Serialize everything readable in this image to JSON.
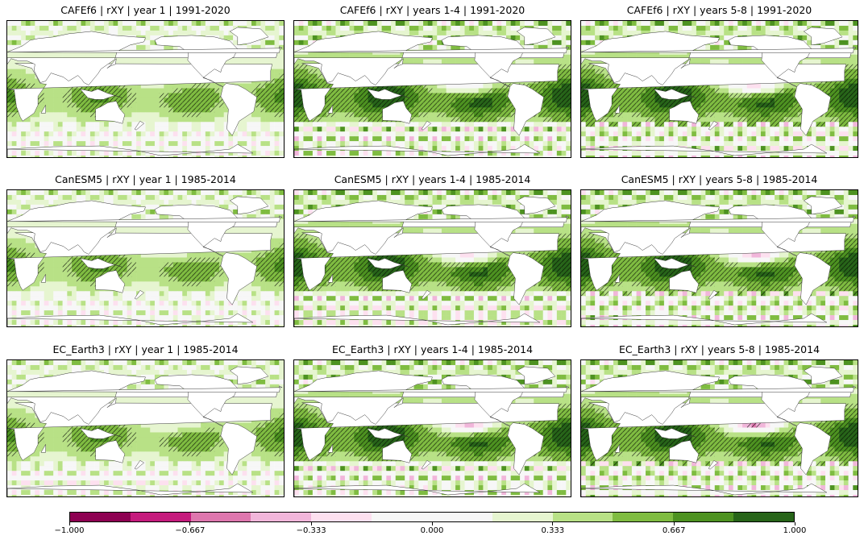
{
  "chart_data": {
    "type": "heatmap",
    "panels": [
      {
        "title": "CAFEf6 | rXY | year 1 | 1991-2020",
        "model": "CAFEf6",
        "lead": "year 1",
        "period": "1991-2020"
      },
      {
        "title": "CAFEf6 | rXY | years 1-4 | 1991-2020",
        "model": "CAFEf6",
        "lead": "years 1-4",
        "period": "1991-2020"
      },
      {
        "title": "CAFEf6 | rXY | years 5-8 | 1991-2020",
        "model": "CAFEf6",
        "lead": "years 5-8",
        "period": "1991-2020"
      },
      {
        "title": "CanESM5 | rXY | year 1 | 1985-2014",
        "model": "CanESM5",
        "lead": "year 1",
        "period": "1985-2014"
      },
      {
        "title": "CanESM5 | rXY | years 1-4 | 1985-2014",
        "model": "CanESM5",
        "lead": "years 1-4",
        "period": "1985-2014"
      },
      {
        "title": "CanESM5 | rXY | years 5-8 | 1985-2014",
        "model": "CanESM5",
        "lead": "years 5-8",
        "period": "1985-2014"
      },
      {
        "title": "EC_Earth3 | rXY | year 1 | 1985-2014",
        "model": "EC_Earth3",
        "lead": "year 1",
        "period": "1985-2014"
      },
      {
        "title": "EC_Earth3 | rXY | years 1-4 | 1985-2014",
        "model": "EC_Earth3",
        "lead": "years 1-4",
        "period": "1985-2014"
      },
      {
        "title": "EC_Earth3 | rXY | years 5-8 | 1985-2014",
        "model": "EC_Earth3",
        "lead": "years 5-8",
        "period": "1985-2014"
      }
    ],
    "colorbar": {
      "range": [
        -1,
        1
      ],
      "ticks": [
        "-1.000",
        "-0.667",
        "-0.333",
        "0.000",
        "0.333",
        "0.667",
        "1.000"
      ],
      "tick_values": [
        -1,
        -0.667,
        -0.333,
        0,
        0.333,
        0.667,
        1
      ],
      "colormap": "PiYG",
      "levels": 12,
      "colors": [
        "#8e0152",
        "#c51b7d",
        "#de77ae",
        "#f1b6da",
        "#fde0ef",
        "#f7f7f7",
        "#f7f7f7",
        "#e6f5d0",
        "#b8e186",
        "#7fbc41",
        "#4d9221",
        "#276419"
      ]
    },
    "land_color": "#ffffff",
    "hatching": "stippled significance hatching (///)"
  }
}
